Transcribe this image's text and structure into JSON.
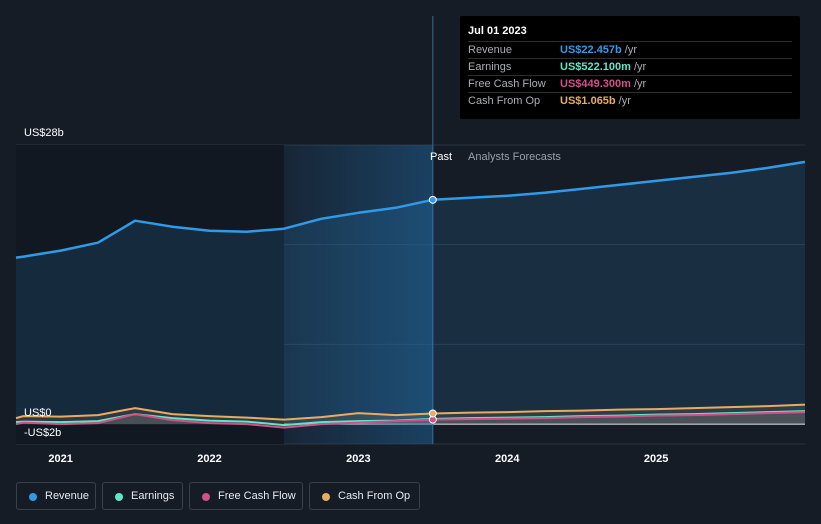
{
  "colors": {
    "background": "#161c26",
    "revenue": "#2f9be8",
    "earnings": "#5ee6c8",
    "free_cash_flow": "#d0508a",
    "cash_from_op": "#e8ac60"
  },
  "tooltip": {
    "date": "Jul 01 2023",
    "rows": [
      {
        "label": "Revenue",
        "value": "US$22.457b",
        "unit": "/yr",
        "color": "#2f9be8"
      },
      {
        "label": "Earnings",
        "value": "US$522.100m",
        "unit": "/yr",
        "color": "#5ee6c8"
      },
      {
        "label": "Free Cash Flow",
        "value": "US$449.300m",
        "unit": "/yr",
        "color": "#d0508a"
      },
      {
        "label": "Cash From Op",
        "value": "US$1.065b",
        "unit": "/yr",
        "color": "#e8ac60"
      }
    ]
  },
  "legend": [
    {
      "label": "Revenue",
      "color": "#2f9be8",
      "icon": "revenue-dot-icon"
    },
    {
      "label": "Earnings",
      "color": "#5ee6c8",
      "icon": "earnings-dot-icon"
    },
    {
      "label": "Free Cash Flow",
      "color": "#d0508a",
      "icon": "free-cash-flow-dot-icon"
    },
    {
      "label": "Cash From Op",
      "color": "#e8ac60",
      "icon": "cash-from-op-dot-icon"
    }
  ],
  "chart_data": {
    "type": "area",
    "past_label": "Past",
    "forecast_label": "Analysts Forecasts",
    "divider_date": 2023.5,
    "shaded_past_start": 2022.5,
    "y_labels": {
      "top": "US$28b",
      "zero": "US$0",
      "bottom": "-US$2b"
    },
    "xlim": [
      2020.7,
      2026.0
    ],
    "ylim": [
      -2,
      28
    ],
    "x_ticks": [
      {
        "value": 2021,
        "label": "2021"
      },
      {
        "value": 2022,
        "label": "2022"
      },
      {
        "value": 2023,
        "label": "2023"
      },
      {
        "value": 2024,
        "label": "2024"
      },
      {
        "value": 2025,
        "label": "2025"
      }
    ],
    "grid": true,
    "legend_position": "bottom",
    "series": [
      {
        "name": "Revenue",
        "key": "revenue",
        "x": [
          2020.5,
          2020.75,
          2021.0,
          2021.25,
          2021.5,
          2021.75,
          2022.0,
          2022.25,
          2022.5,
          2022.75,
          2023.0,
          2023.25,
          2023.5,
          2023.75,
          2024.0,
          2024.25,
          2024.5,
          2024.75,
          2025.0,
          2025.25,
          2025.5,
          2025.75,
          2026.0
        ],
        "y": [
          16.7,
          16.8,
          17.4,
          18.2,
          20.4,
          19.8,
          19.4,
          19.3,
          19.6,
          20.6,
          21.2,
          21.7,
          22.5,
          22.7,
          22.9,
          23.2,
          23.6,
          24.0,
          24.4,
          24.8,
          25.2,
          25.7,
          26.3
        ]
      },
      {
        "name": "Earnings",
        "key": "earnings",
        "x": [
          2020.5,
          2020.75,
          2021.0,
          2021.25,
          2021.5,
          2021.75,
          2022.0,
          2022.25,
          2022.5,
          2022.75,
          2023.0,
          2023.25,
          2023.5,
          2023.75,
          2024.0,
          2024.25,
          2024.5,
          2024.75,
          2025.0,
          2025.25,
          2025.5,
          2025.75,
          2026.0
        ],
        "y": [
          0.2,
          0.25,
          0.2,
          0.3,
          1.0,
          0.6,
          0.35,
          0.25,
          -0.1,
          0.2,
          0.3,
          0.35,
          0.52,
          0.6,
          0.65,
          0.7,
          0.8,
          0.85,
          0.95,
          1.0,
          1.1,
          1.2,
          1.3
        ]
      },
      {
        "name": "Free Cash Flow",
        "key": "free_cash_flow",
        "x": [
          2020.5,
          2020.75,
          2021.0,
          2021.25,
          2021.5,
          2021.75,
          2022.0,
          2022.25,
          2022.5,
          2022.75,
          2023.0,
          2023.25,
          2023.5,
          2023.75,
          2024.0,
          2024.25,
          2024.5,
          2024.75,
          2025.0,
          2025.25,
          2025.5,
          2025.75,
          2026.0
        ],
        "y": [
          0.0,
          0.15,
          0.0,
          0.1,
          1.0,
          0.4,
          0.1,
          0.0,
          -0.35,
          0.0,
          0.15,
          0.3,
          0.45,
          0.5,
          0.55,
          0.6,
          0.7,
          0.75,
          0.85,
          0.9,
          1.0,
          1.1,
          1.2
        ]
      },
      {
        "name": "Cash From Op",
        "key": "cash_from_op",
        "x": [
          2020.5,
          2020.75,
          2021.0,
          2021.25,
          2021.5,
          2021.75,
          2022.0,
          2022.25,
          2022.5,
          2022.75,
          2023.0,
          2023.25,
          2023.5,
          2023.75,
          2024.0,
          2024.25,
          2024.5,
          2024.75,
          2025.0,
          2025.25,
          2025.5,
          2025.75,
          2026.0
        ],
        "y": [
          0.6,
          0.8,
          0.75,
          0.9,
          1.6,
          1.0,
          0.8,
          0.65,
          0.45,
          0.7,
          1.1,
          0.9,
          1.065,
          1.15,
          1.2,
          1.3,
          1.35,
          1.45,
          1.5,
          1.6,
          1.7,
          1.8,
          1.95
        ]
      }
    ]
  }
}
